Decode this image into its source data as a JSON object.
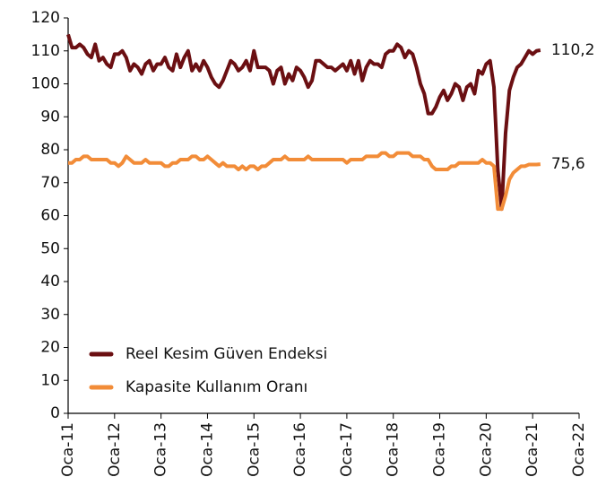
{
  "chart_data": {
    "type": "line",
    "x": [
      0,
      1,
      2,
      3,
      4,
      5,
      6,
      7,
      8,
      9,
      10,
      11,
      12,
      13,
      14,
      15,
      16,
      17,
      18,
      19,
      20,
      21,
      22,
      23,
      24,
      25,
      26,
      27,
      28,
      29,
      30,
      31,
      32,
      33,
      34,
      35,
      36,
      37,
      38,
      39,
      40,
      41,
      42,
      43,
      44,
      45,
      46,
      47,
      48,
      49,
      50,
      51,
      52,
      53,
      54,
      55,
      56,
      57,
      58,
      59,
      60,
      61,
      62,
      63,
      64,
      65,
      66,
      67,
      68,
      69,
      70,
      71,
      72,
      73,
      74,
      75,
      76,
      77,
      78,
      79,
      80,
      81,
      82,
      83,
      84,
      85,
      86,
      87,
      88,
      89,
      90,
      91,
      92,
      93,
      94,
      95,
      96,
      97,
      98,
      99,
      100,
      101,
      102,
      103,
      104,
      105,
      106,
      107,
      108,
      109,
      110,
      111,
      112,
      113,
      114,
      115,
      116,
      117,
      118,
      119,
      120,
      121,
      122
    ],
    "series": [
      {
        "name": "Reel Kesim Güven Endeksi",
        "color": "#6b0f12",
        "end_label": "110,2",
        "values": [
          115,
          111,
          111,
          112,
          111,
          109,
          108,
          112,
          107,
          108,
          106,
          105,
          109,
          109,
          110,
          108,
          104,
          106,
          105,
          103,
          106,
          107,
          104,
          106,
          106,
          108,
          105,
          104,
          109,
          105,
          108,
          110,
          104,
          106,
          104,
          107,
          105,
          102,
          100,
          99,
          101,
          104,
          107,
          106,
          104,
          105,
          107,
          104,
          110,
          105,
          105,
          105,
          104,
          100,
          104,
          105,
          100,
          103,
          101,
          105,
          104,
          102,
          99,
          101,
          107,
          107,
          106,
          105,
          105,
          104,
          105,
          106,
          104,
          107,
          103,
          107,
          101,
          105,
          107,
          106,
          106,
          105,
          109,
          110,
          110,
          112,
          111,
          108,
          110,
          109,
          105,
          100,
          97,
          91,
          91,
          93,
          96,
          98,
          95,
          97,
          100,
          99,
          95,
          99,
          100,
          97,
          104,
          103,
          106,
          107,
          99,
          74,
          62,
          85,
          98,
          102,
          105,
          106,
          108,
          110,
          109,
          110,
          110.2
        ]
      },
      {
        "name": "Kapasite Kullanım Oranı",
        "color": "#f28c38",
        "end_label": "75,6",
        "values": [
          76,
          76,
          77,
          77,
          78,
          78,
          77,
          77,
          77,
          77,
          77,
          76,
          76,
          75,
          76,
          78,
          77,
          76,
          76,
          76,
          77,
          76,
          76,
          76,
          76,
          75,
          75,
          76,
          76,
          77,
          77,
          77,
          78,
          78,
          77,
          77,
          78,
          77,
          76,
          75,
          76,
          75,
          75,
          75,
          74,
          75,
          74,
          75,
          75,
          74,
          75,
          75,
          76,
          77,
          77,
          77,
          78,
          77,
          77,
          77,
          77,
          77,
          78,
          77,
          77,
          77,
          77,
          77,
          77,
          77,
          77,
          77,
          76,
          77,
          77,
          77,
          77,
          78,
          78,
          78,
          78,
          79,
          79,
          78,
          78,
          79,
          79,
          79,
          79,
          78,
          78,
          78,
          77,
          77,
          75,
          74,
          74,
          74,
          74,
          75,
          75,
          76,
          76,
          76,
          76,
          76,
          76,
          77,
          76,
          76,
          75,
          62,
          62,
          66,
          71,
          73,
          74,
          75,
          75,
          75.5,
          75.5,
          75.5,
          75.6
        ]
      }
    ],
    "xlim": [
      0,
      132
    ],
    "xticks": [
      {
        "value": 0,
        "label": "Oca-11"
      },
      {
        "value": 12,
        "label": "Oca-12"
      },
      {
        "value": 24,
        "label": "Oca-13"
      },
      {
        "value": 36,
        "label": "Oca-14"
      },
      {
        "value": 48,
        "label": "Oca-15"
      },
      {
        "value": 60,
        "label": "Oca-16"
      },
      {
        "value": 72,
        "label": "Oca-17"
      },
      {
        "value": 84,
        "label": "Oca-18"
      },
      {
        "value": 96,
        "label": "Oca-19"
      },
      {
        "value": 108,
        "label": "Oca-20"
      },
      {
        "value": 120,
        "label": "Oca-21"
      },
      {
        "value": 132,
        "label": "Oca-22"
      }
    ],
    "ylim": [
      0,
      120
    ],
    "yticks": [
      0,
      10,
      20,
      30,
      40,
      50,
      60,
      70,
      80,
      90,
      100,
      110,
      120
    ],
    "grid": false,
    "legend": "lower left"
  }
}
